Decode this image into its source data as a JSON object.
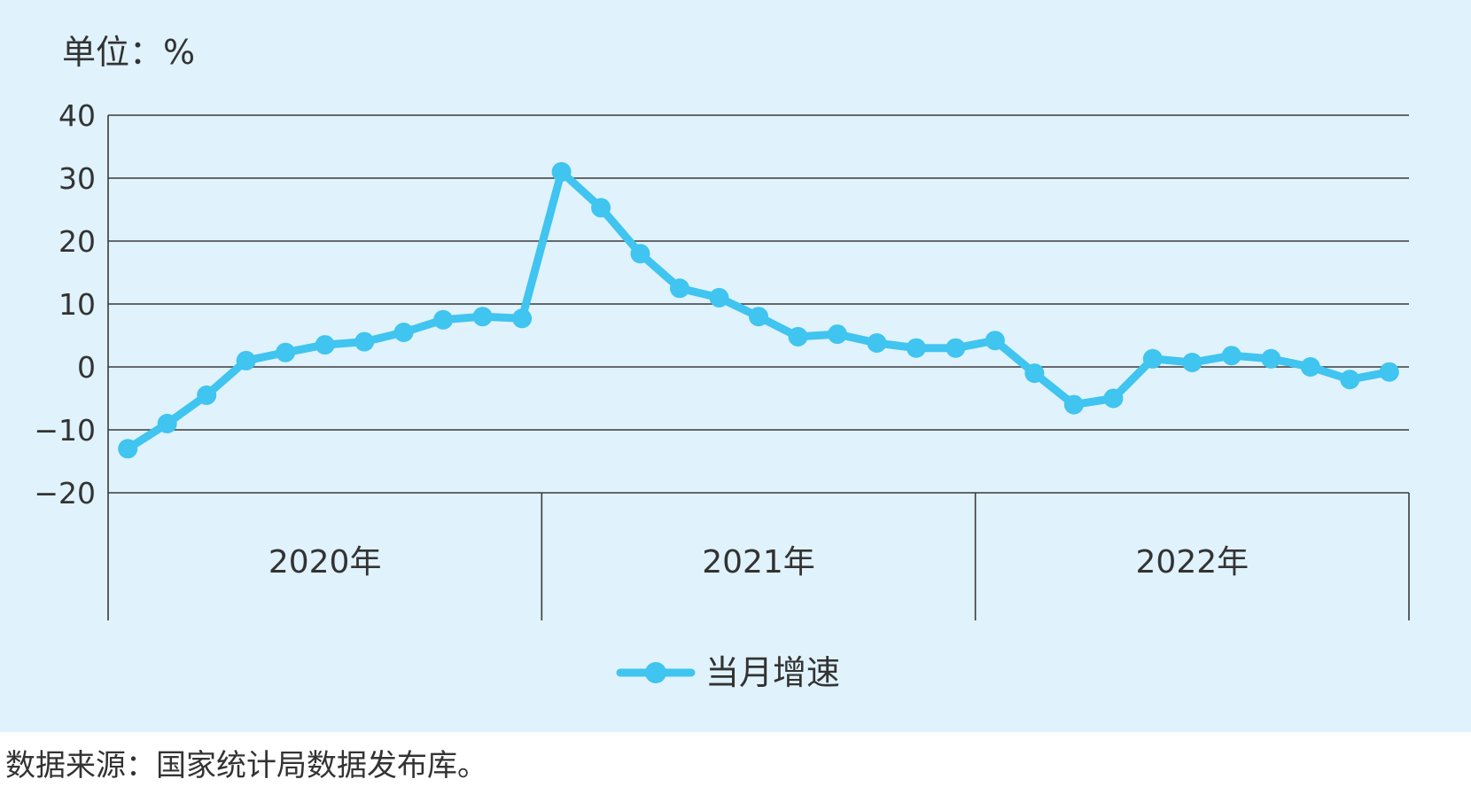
{
  "chart_data": {
    "type": "line",
    "unit_label": "单位：%",
    "ylim": [
      -20,
      40
    ],
    "yticks": [
      40,
      30,
      20,
      10,
      0,
      -10,
      -20
    ],
    "ytick_labels": [
      "40",
      "30",
      "20",
      "10",
      "0",
      "−10",
      "−20"
    ],
    "year_groups": [
      {
        "label": "2020年",
        "months": 11
      },
      {
        "label": "2021年",
        "months": 11
      },
      {
        "label": "2022年",
        "months": 11
      }
    ],
    "series": [
      {
        "name": "当月增速",
        "color": "#40c4f0",
        "values": [
          -13,
          -9,
          -4.5,
          1,
          2.3,
          3.5,
          4,
          5.5,
          7.5,
          8,
          7.7,
          31,
          25.3,
          18,
          12.5,
          11,
          8,
          4.8,
          5.2,
          3.8,
          3,
          3,
          4.2,
          -1,
          -6,
          -5,
          1.3,
          0.7,
          1.8,
          1.3,
          0,
          -2,
          -0.8
        ]
      }
    ],
    "grid": true,
    "legend": "bottom-center"
  },
  "source_note": "数据来源：国家统计局数据发布库。"
}
